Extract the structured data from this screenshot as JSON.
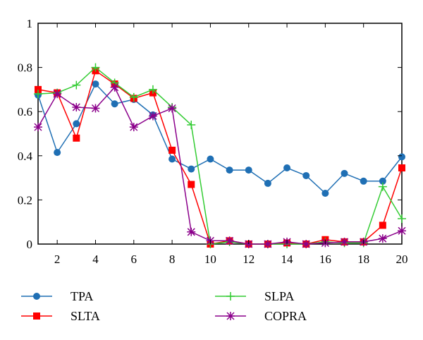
{
  "chart_data": {
    "type": "line",
    "title": "",
    "xlabel": "",
    "ylabel": "",
    "xlim": [
      1,
      20
    ],
    "ylim": [
      0,
      1
    ],
    "grid": false,
    "legend_placement": "bottom",
    "x": [
      1,
      2,
      3,
      4,
      5,
      6,
      7,
      8,
      9,
      10,
      11,
      12,
      13,
      14,
      15,
      16,
      17,
      18,
      19,
      20
    ],
    "x_ticks": [
      2,
      4,
      6,
      8,
      10,
      12,
      14,
      16,
      18,
      20
    ],
    "x_tick_labels": [
      "2",
      "4",
      "6",
      "8",
      "10",
      "12",
      "14",
      "16",
      "18",
      "20"
    ],
    "y_ticks": [
      0,
      0.2,
      0.4,
      0.6,
      0.8,
      1
    ],
    "y_tick_labels": [
      "0",
      "0.2",
      "0.4",
      "0.6",
      "0.8",
      "1"
    ],
    "series": [
      {
        "name": "TPA",
        "color": "#1f6fb4",
        "marker": "circle",
        "values": [
          0.675,
          0.415,
          0.545,
          0.725,
          0.635,
          0.655,
          0.585,
          0.385,
          0.34,
          0.385,
          0.335,
          0.335,
          0.275,
          0.345,
          0.31,
          0.23,
          0.32,
          0.285,
          0.285,
          0.395
        ]
      },
      {
        "name": "SLTA",
        "color": "#ff0000",
        "marker": "square",
        "values": [
          0.7,
          0.685,
          0.48,
          0.785,
          0.725,
          0.66,
          0.685,
          0.425,
          0.27,
          0.0,
          0.015,
          0.0,
          0.0,
          0.005,
          0.0,
          0.02,
          0.01,
          0.01,
          0.085,
          0.345
        ]
      },
      {
        "name": "SLPA",
        "color": "#33cc33",
        "marker": "plus",
        "values": [
          0.68,
          0.685,
          0.72,
          0.8,
          0.73,
          0.665,
          0.7,
          0.62,
          0.54,
          0.0,
          0.01,
          0.0,
          0.0,
          0.0,
          0.0,
          0.01,
          0.005,
          0.005,
          0.26,
          0.115
        ]
      },
      {
        "name": "COPRA",
        "color": "#8b008b",
        "marker": "star",
        "values": [
          0.53,
          0.68,
          0.62,
          0.615,
          0.71,
          0.53,
          0.58,
          0.615,
          0.055,
          0.015,
          0.015,
          0.0,
          0.0,
          0.01,
          0.0,
          0.005,
          0.01,
          0.01,
          0.025,
          0.06
        ]
      }
    ]
  }
}
